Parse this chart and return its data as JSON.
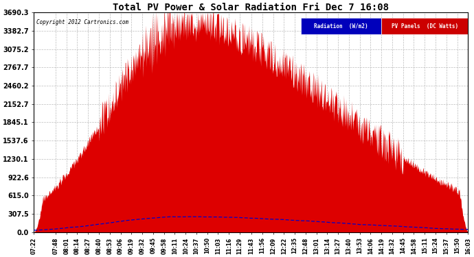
{
  "title": "Total PV Power & Solar Radiation Fri Dec 7 16:08",
  "copyright": "Copyright 2012 Cartronics.com",
  "legend_radiation": "Radiation  (W/m2)",
  "legend_pv": "PV Panels  (DC Watts)",
  "legend_radiation_bg": "#0000bb",
  "legend_pv_bg": "#cc0000",
  "yticks": [
    0.0,
    307.5,
    615.0,
    922.6,
    1230.1,
    1537.6,
    1845.1,
    2152.7,
    2460.2,
    2767.7,
    3075.2,
    3382.7,
    3690.3
  ],
  "ymax": 3690.3,
  "background_color": "#ffffff",
  "plot_bg_color": "#ffffff",
  "grid_color": "#aaaaaa",
  "pv_fill_color": "#dd0000",
  "radiation_line_color": "#0000cc",
  "tick_times": [
    "07:22",
    "07:48",
    "08:01",
    "08:14",
    "08:27",
    "08:40",
    "08:53",
    "09:06",
    "09:19",
    "09:32",
    "09:45",
    "09:58",
    "10:11",
    "10:24",
    "10:37",
    "10:50",
    "11:03",
    "11:16",
    "11:29",
    "11:43",
    "11:56",
    "12:09",
    "12:22",
    "12:35",
    "12:48",
    "13:01",
    "13:14",
    "13:27",
    "13:40",
    "13:53",
    "14:06",
    "14:19",
    "14:32",
    "14:45",
    "14:58",
    "15:11",
    "15:24",
    "15:37",
    "15:50",
    "16:03"
  ]
}
